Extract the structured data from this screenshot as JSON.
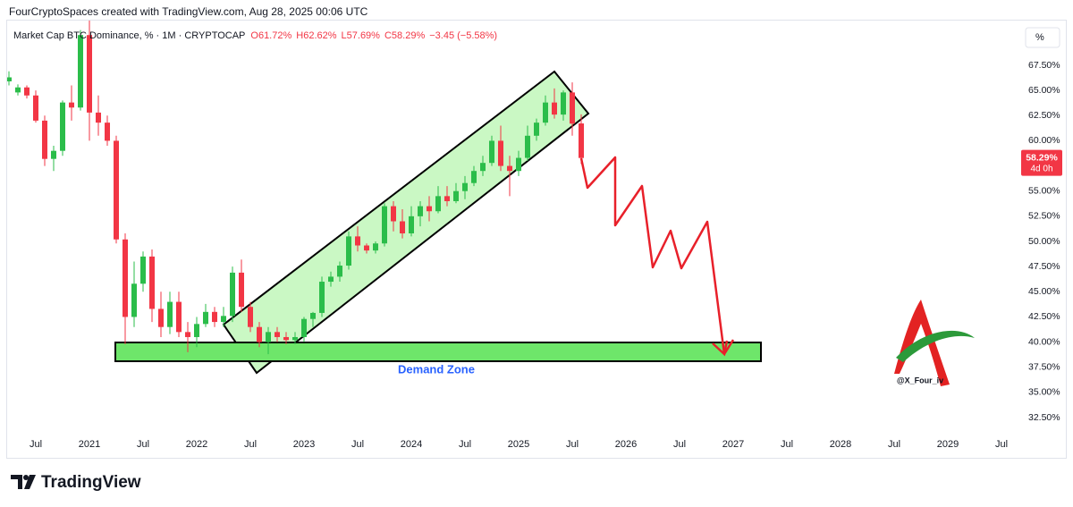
{
  "header": {
    "attribution": "FourCryptoSpaces created with TradingView.com, Aug 28, 2025 00:06 UTC"
  },
  "chart_data": {
    "type": "candlestick",
    "title": "Market Cap BTC Dominance, % · 1M · CRYPTOCAP",
    "ohlc_labels": [
      "O61.72%",
      "H62.62%",
      "L57.69%",
      "C58.29%",
      "−3.45 (−5.58%)"
    ],
    "x": [
      "2020-04",
      "2020-05",
      "2020-06",
      "2020-07",
      "2020-08",
      "2020-09",
      "2020-10",
      "2020-11",
      "2020-12",
      "2021-01",
      "2021-02",
      "2021-03",
      "2021-04",
      "2021-05",
      "2021-06",
      "2021-07",
      "2021-08",
      "2021-09",
      "2021-10",
      "2021-11",
      "2021-12",
      "2022-01",
      "2022-02",
      "2022-03",
      "2022-04",
      "2022-05",
      "2022-06",
      "2022-07",
      "2022-08",
      "2022-09",
      "2022-10",
      "2022-11",
      "2022-12",
      "2023-01",
      "2023-02",
      "2023-03",
      "2023-04",
      "2023-05",
      "2023-06",
      "2023-07",
      "2023-08",
      "2023-09",
      "2023-10",
      "2023-11",
      "2023-12",
      "2024-01",
      "2024-02",
      "2024-03",
      "2024-04",
      "2024-05",
      "2024-06",
      "2024-07",
      "2024-08",
      "2024-09",
      "2024-10",
      "2024-11",
      "2024-12",
      "2025-01",
      "2025-02",
      "2025-03",
      "2025-04",
      "2025-05",
      "2025-06",
      "2025-07",
      "2025-08"
    ],
    "open": [
      65.9,
      64.8,
      65.3,
      64.5,
      62.0,
      58.2,
      59.0,
      63.8,
      63.3,
      70.5,
      62.8,
      61.8,
      60.0,
      50.2,
      42.5,
      45.8,
      48.5,
      43.3,
      41.5,
      44.0,
      41.0,
      40.5,
      41.8,
      43.0,
      42.0,
      42.6,
      46.9,
      43.5,
      41.5,
      40.0,
      41.0,
      40.5,
      40.2,
      40.5,
      42.3,
      42.9,
      46.0,
      46.5,
      47.6,
      50.5,
      49.6,
      49.1,
      49.8,
      53.5,
      52.0,
      50.8,
      52.5,
      53.5,
      53.0,
      54.5,
      54.0,
      55.0,
      55.8,
      57.0,
      57.8,
      60.0,
      57.5,
      57.0,
      58.3,
      60.5,
      61.8,
      63.8,
      62.6,
      64.8,
      61.72
    ],
    "high": [
      66.9,
      65.6,
      65.5,
      65.0,
      62.5,
      59.5,
      64.0,
      65.5,
      71.0,
      73.0,
      64.5,
      62.5,
      60.5,
      50.8,
      48.0,
      49.0,
      49.2,
      45.0,
      45.0,
      45.0,
      42.0,
      42.5,
      43.8,
      43.5,
      43.5,
      47.5,
      48.2,
      44.0,
      42.0,
      41.5,
      41.5,
      41.0,
      41.0,
      42.5,
      43.0,
      46.5,
      47.0,
      48.0,
      51.0,
      51.5,
      49.8,
      50.0,
      53.8,
      54.0,
      53.2,
      53.5,
      54.0,
      54.5,
      55.5,
      55.5,
      55.8,
      56.5,
      57.5,
      58.5,
      60.5,
      61.5,
      58.5,
      59.0,
      61.5,
      62.2,
      64.5,
      65.2,
      65.0,
      65.8,
      62.62
    ],
    "low": [
      65.5,
      64.5,
      64.2,
      61.8,
      57.5,
      57.0,
      58.5,
      62.0,
      63.0,
      60.0,
      60.5,
      59.5,
      49.8,
      39.8,
      41.5,
      45.0,
      42.0,
      40.5,
      40.8,
      40.5,
      39.0,
      39.5,
      41.5,
      41.5,
      41.5,
      42.0,
      43.0,
      41.0,
      39.5,
      38.8,
      40.0,
      39.8,
      39.8,
      40.0,
      41.5,
      42.5,
      45.5,
      46.0,
      47.2,
      49.0,
      48.8,
      48.8,
      49.5,
      51.0,
      50.3,
      50.5,
      51.5,
      52.0,
      52.8,
      53.5,
      53.8,
      54.2,
      55.5,
      56.5,
      57.5,
      57.0,
      54.5,
      56.5,
      58.0,
      60.0,
      61.5,
      62.2,
      62.0,
      60.5,
      57.69
    ],
    "close": [
      66.3,
      65.3,
      64.5,
      62.0,
      58.2,
      59.0,
      63.8,
      63.3,
      70.5,
      62.8,
      61.8,
      60.0,
      50.2,
      42.5,
      45.8,
      48.5,
      43.3,
      41.5,
      44.0,
      41.0,
      40.5,
      41.8,
      43.0,
      42.0,
      42.6,
      46.9,
      43.5,
      41.5,
      40.0,
      41.0,
      40.5,
      40.2,
      40.5,
      42.3,
      42.9,
      46.0,
      46.5,
      47.6,
      50.5,
      49.6,
      49.1,
      49.8,
      53.5,
      52.0,
      50.8,
      52.5,
      53.5,
      53.0,
      54.5,
      54.0,
      55.0,
      55.8,
      57.0,
      57.8,
      60.0,
      57.5,
      57.0,
      58.3,
      60.5,
      61.8,
      63.8,
      62.6,
      64.8,
      61.7,
      58.29
    ],
    "up_color": "#2bbd4a",
    "down_color": "#f23645",
    "xlim": [
      "2020-03",
      "2029-08"
    ],
    "xticks": [
      {
        "value": "2020-07",
        "label": "Jul"
      },
      {
        "value": "2021-01",
        "label": "2021"
      },
      {
        "value": "2021-07",
        "label": "Jul"
      },
      {
        "value": "2022-01",
        "label": "2022"
      },
      {
        "value": "2022-07",
        "label": "Jul"
      },
      {
        "value": "2023-01",
        "label": "2023"
      },
      {
        "value": "2023-07",
        "label": "Jul"
      },
      {
        "value": "2024-01",
        "label": "2024"
      },
      {
        "value": "2024-07",
        "label": "Jul"
      },
      {
        "value": "2025-01",
        "label": "2025"
      },
      {
        "value": "2025-07",
        "label": "Jul"
      },
      {
        "value": "2026-01",
        "label": "2026"
      },
      {
        "value": "2026-07",
        "label": "Jul"
      },
      {
        "value": "2027-01",
        "label": "2027"
      },
      {
        "value": "2027-07",
        "label": "Jul"
      },
      {
        "value": "2028-01",
        "label": "2028"
      },
      {
        "value": "2028-07",
        "label": "Jul"
      },
      {
        "value": "2029-01",
        "label": "2029"
      },
      {
        "value": "2029-07",
        "label": "Jul"
      }
    ],
    "ylim": [
      31.1,
      71.3
    ],
    "yticks": [
      {
        "value": 32.5,
        "label": "32.50%"
      },
      {
        "value": 35,
        "label": "35.00%"
      },
      {
        "value": 37.5,
        "label": "37.50%"
      },
      {
        "value": 40,
        "label": "40.00%"
      },
      {
        "value": 42.5,
        "label": "42.50%"
      },
      {
        "value": 45,
        "label": "45.00%"
      },
      {
        "value": 47.5,
        "label": "47.50%"
      },
      {
        "value": 50,
        "label": "50.00%"
      },
      {
        "value": 52.5,
        "label": "52.50%"
      },
      {
        "value": 55,
        "label": "55.00%"
      },
      {
        "value": 57.5,
        "label": "57.50%"
      },
      {
        "value": 60,
        "label": "60.00%"
      },
      {
        "value": 62.5,
        "label": "62.50%"
      },
      {
        "value": 65,
        "label": "65.00%"
      },
      {
        "value": 67.5,
        "label": "67.50%"
      }
    ],
    "grid": false,
    "scale_unit": "%",
    "last_price_label": "58.29%",
    "countdown": "4d 0h",
    "annotation": "Demand Zone",
    "watermark": "@X_Four_iv"
  },
  "footer": {
    "brand": "TradingView"
  }
}
